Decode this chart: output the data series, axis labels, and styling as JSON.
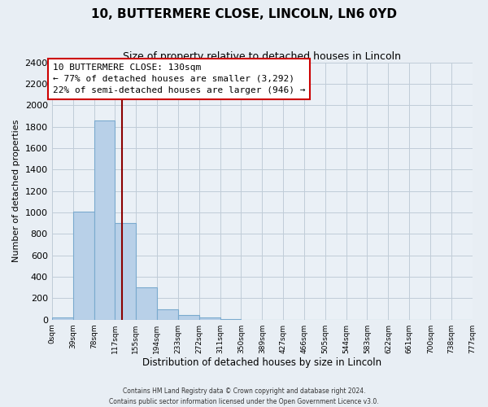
{
  "title": "10, BUTTERMERE CLOSE, LINCOLN, LN6 0YD",
  "subtitle": "Size of property relative to detached houses in Lincoln",
  "xlabel": "Distribution of detached houses by size in Lincoln",
  "ylabel": "Number of detached properties",
  "bar_values": [
    20,
    1010,
    1860,
    900,
    300,
    100,
    40,
    20,
    5,
    0,
    0,
    0,
    0,
    0,
    0,
    0,
    0,
    0,
    0,
    0
  ],
  "bin_edges": [
    0,
    39,
    78,
    117,
    155,
    194,
    233,
    272,
    311,
    350,
    389,
    427,
    466,
    505,
    544,
    583,
    622,
    661,
    700,
    738,
    777
  ],
  "tick_labels": [
    "0sqm",
    "39sqm",
    "78sqm",
    "117sqm",
    "155sqm",
    "194sqm",
    "233sqm",
    "272sqm",
    "311sqm",
    "350sqm",
    "389sqm",
    "427sqm",
    "466sqm",
    "505sqm",
    "544sqm",
    "583sqm",
    "622sqm",
    "661sqm",
    "700sqm",
    "738sqm",
    "777sqm"
  ],
  "bar_color": "#b8d0e8",
  "bar_edge_color": "#7aaace",
  "ylim": [
    0,
    2400
  ],
  "yticks": [
    0,
    200,
    400,
    600,
    800,
    1000,
    1200,
    1400,
    1600,
    1800,
    2000,
    2200,
    2400
  ],
  "vline_x": 130,
  "vline_color": "#8b0000",
  "annotation_title": "10 BUTTERMERE CLOSE: 130sqm",
  "annotation_line1": "← 77% of detached houses are smaller (3,292)",
  "annotation_line2": "22% of semi-detached houses are larger (946) →",
  "annotation_box_facecolor": "#ffffff",
  "annotation_box_edgecolor": "#cc0000",
  "footer1": "Contains HM Land Registry data © Crown copyright and database right 2024.",
  "footer2": "Contains public sector information licensed under the Open Government Licence v3.0.",
  "background_color": "#e8eef4",
  "plot_background": "#eaf0f6",
  "grid_color": "#c0ccd8"
}
